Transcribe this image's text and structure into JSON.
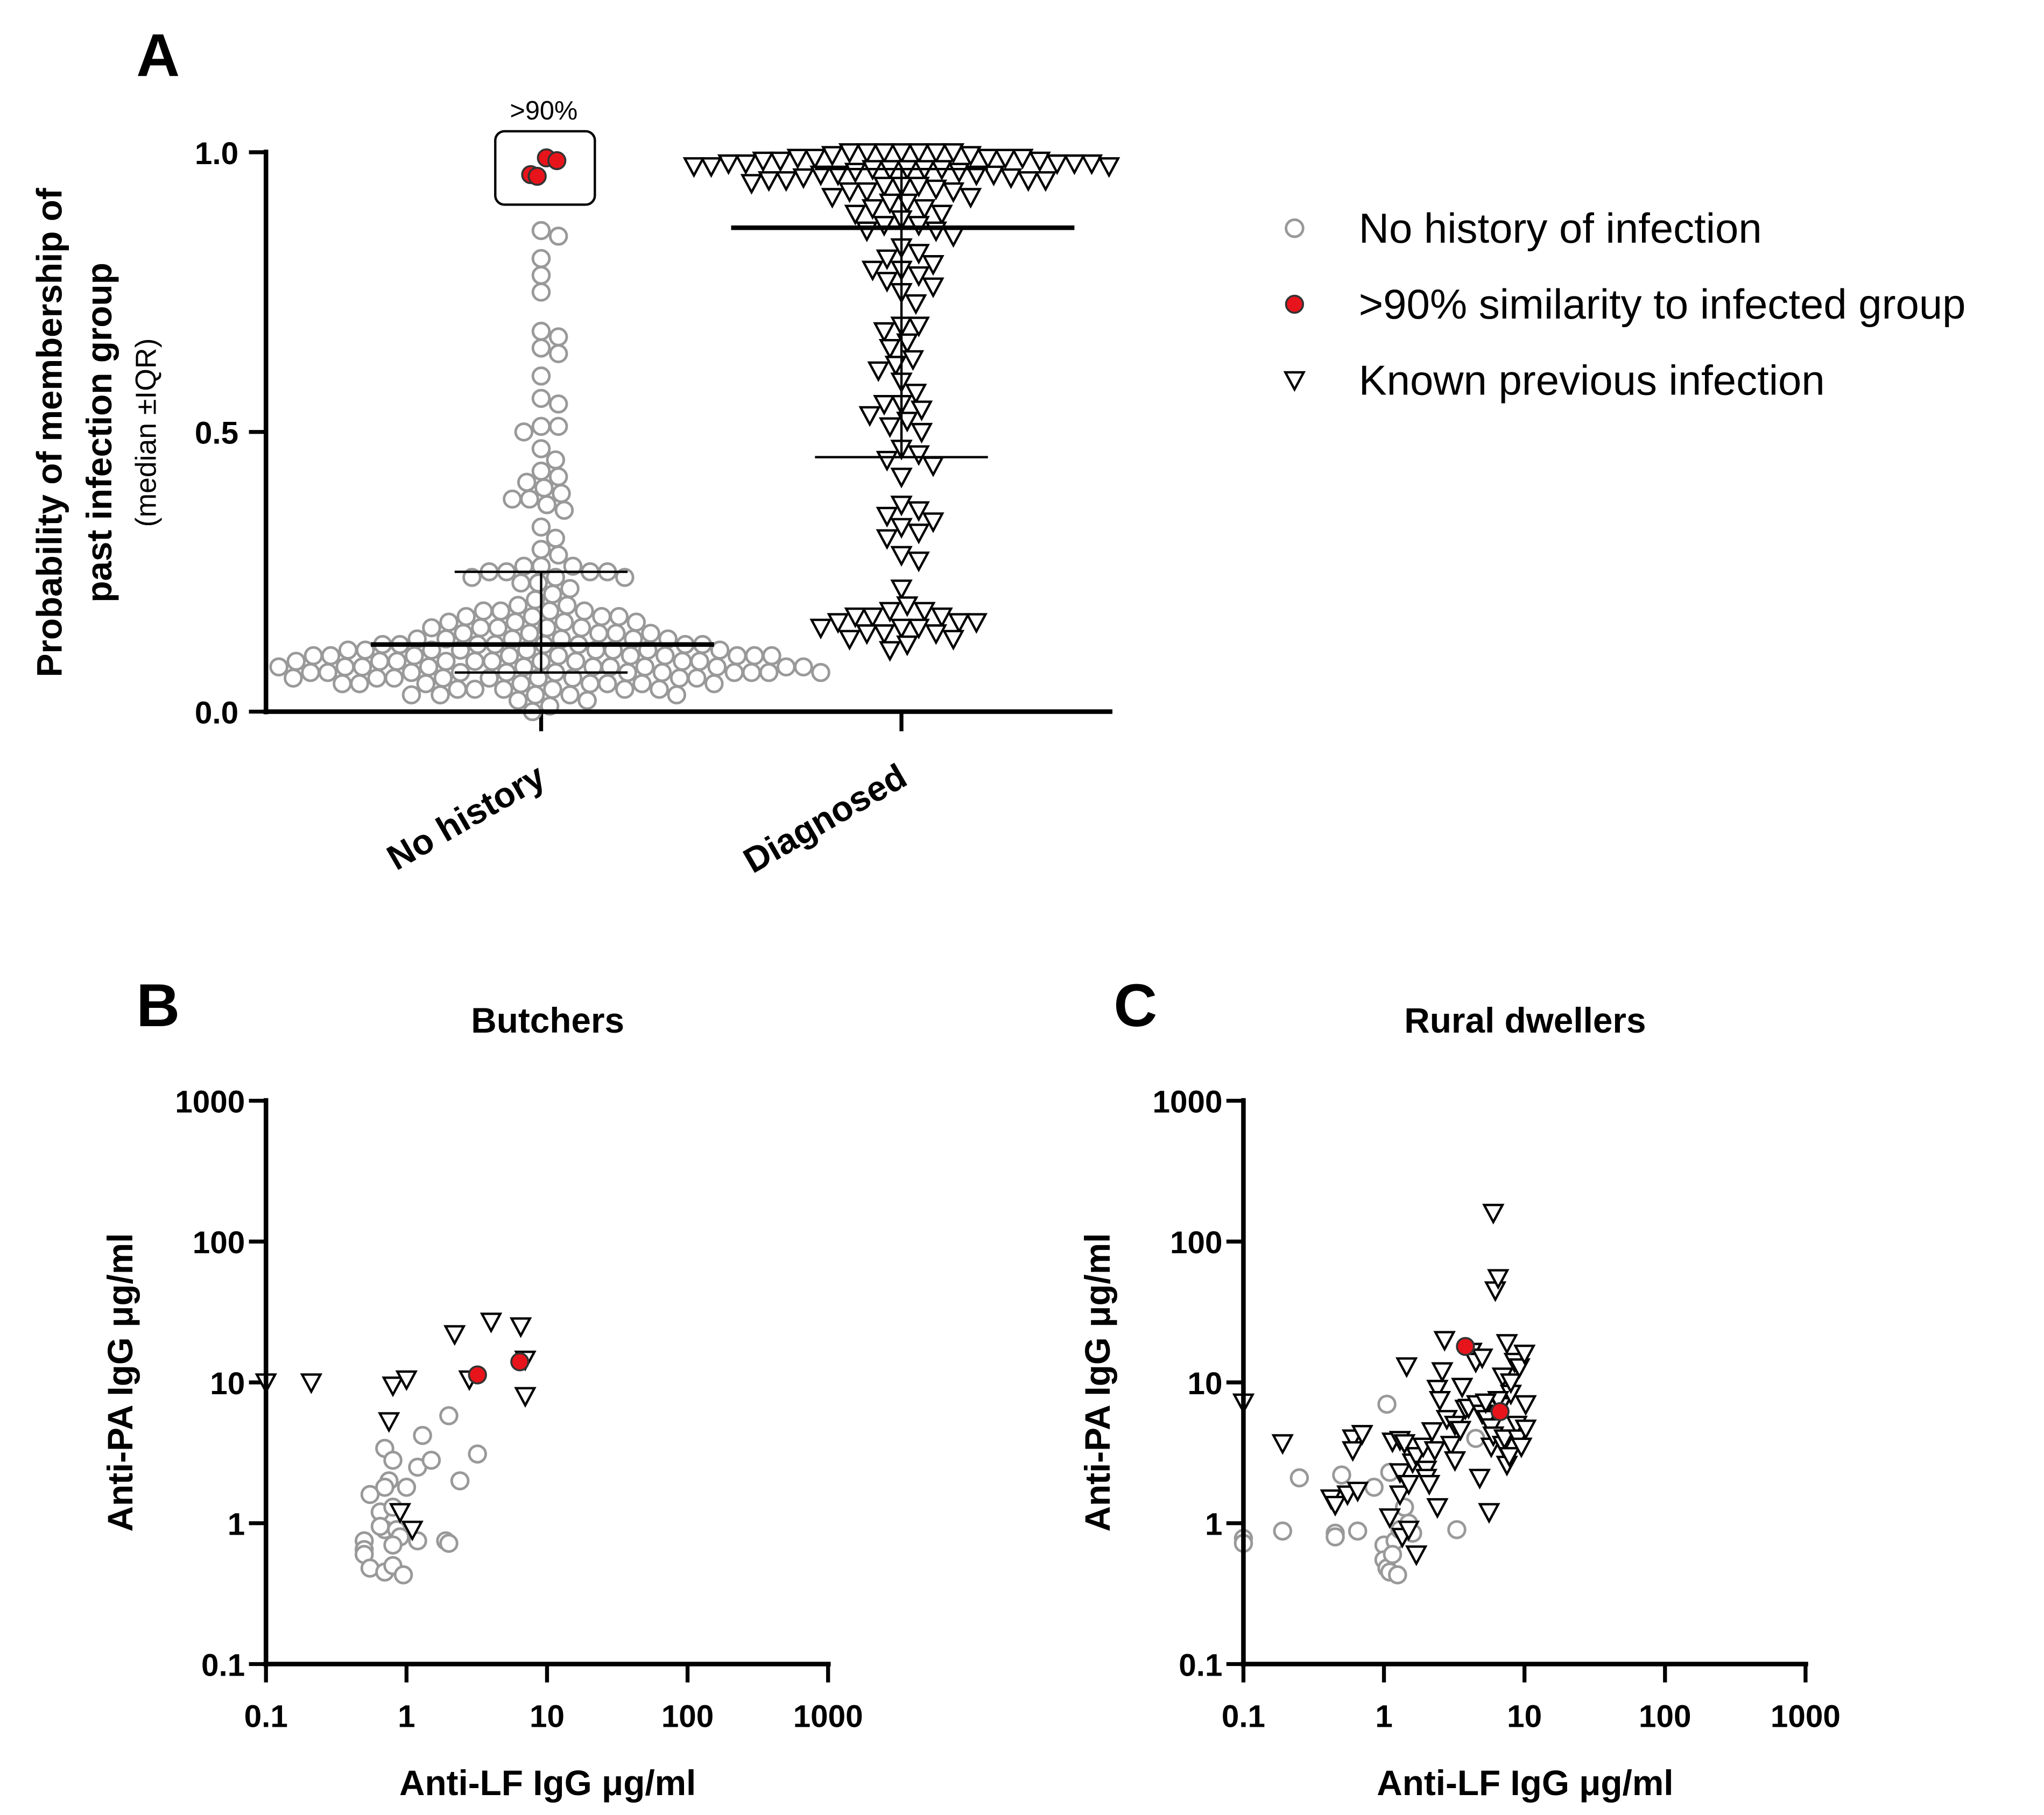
{
  "colors": {
    "no_history": "#999999",
    "similar": "#e8141b",
    "known": "#000000"
  },
  "legend": [
    {
      "label": "No history of infection",
      "marker": "open-circle"
    },
    {
      "label": ">90% similarity to infected group",
      "marker": "red-circle"
    },
    {
      "label": "Known previous infection",
      "marker": "open-triangle"
    }
  ],
  "chart_data": [
    {
      "panel": "A",
      "type": "scatter",
      "ylabel": "Probability of membership of past infection group",
      "ylabel_line1": "Probability of membership of",
      "ylabel_line2": "past infection group",
      "ylabel_sub": "(median ±IQR)",
      "ylim": [
        0,
        1
      ],
      "yticks": [
        "0.0",
        "0.5",
        "1.0"
      ],
      "categories": [
        "No history",
        "Diagnosed"
      ],
      "annotation": ">90%",
      "series": [
        {
          "name": "No history of infection",
          "category": "No history",
          "values": [
            0.86,
            0.85,
            0.81,
            0.78,
            0.75,
            0.68,
            0.67,
            0.65,
            0.64,
            0.6,
            0.56,
            0.55,
            0.51,
            0.51,
            0.5,
            0.47,
            0.45,
            0.43,
            0.42,
            0.41,
            0.4,
            0.39,
            0.38,
            0.38,
            0.37,
            0.36,
            0.33,
            0.31,
            0.29,
            0.28,
            0.26,
            0.26,
            0.26,
            0.25,
            0.25,
            0.25,
            0.25,
            0.24,
            0.24,
            0.24,
            0.23,
            0.23,
            0.22,
            0.21,
            0.2,
            0.19,
            0.19,
            0.18,
            0.18,
            0.18,
            0.18,
            0.17,
            0.17,
            0.17,
            0.17,
            0.16,
            0.16,
            0.16,
            0.16,
            0.15,
            0.15,
            0.15,
            0.15,
            0.15,
            0.14,
            0.14,
            0.14,
            0.14,
            0.14,
            0.13,
            0.13,
            0.13,
            0.13,
            0.13,
            0.13,
            0.12,
            0.12,
            0.12,
            0.12,
            0.12,
            0.12,
            0.12,
            0.12,
            0.11,
            0.11,
            0.11,
            0.11,
            0.11,
            0.11,
            0.11,
            0.11,
            0.11,
            0.1,
            0.1,
            0.1,
            0.1,
            0.1,
            0.1,
            0.1,
            0.1,
            0.1,
            0.1,
            0.09,
            0.09,
            0.09,
            0.09,
            0.09,
            0.09,
            0.09,
            0.09,
            0.09,
            0.09,
            0.08,
            0.08,
            0.08,
            0.08,
            0.08,
            0.08,
            0.08,
            0.08,
            0.08,
            0.08,
            0.08,
            0.07,
            0.07,
            0.07,
            0.07,
            0.07,
            0.07,
            0.07,
            0.07,
            0.07,
            0.07,
            0.07,
            0.07,
            0.06,
            0.06,
            0.06,
            0.06,
            0.06,
            0.06,
            0.06,
            0.06,
            0.06,
            0.05,
            0.05,
            0.05,
            0.05,
            0.05,
            0.05,
            0.05,
            0.05,
            0.04,
            0.04,
            0.04,
            0.04,
            0.04,
            0.04,
            0.03,
            0.03,
            0.03,
            0.03,
            0.03,
            0.02,
            0.02,
            0.01,
            0.0
          ]
        },
        {
          "name": ">90% similarity to infected group",
          "category": "No history",
          "values": [
            0.99,
            0.985,
            0.96,
            0.957
          ]
        },
        {
          "name": "Known previous infection",
          "category": "Diagnosed",
          "values": [
            1.0,
            1.0,
            1.0,
            1.0,
            1.0,
            1.0,
            1.0,
            0.995,
            0.995,
            0.99,
            0.99,
            0.99,
            0.99,
            0.99,
            0.985,
            0.985,
            0.985,
            0.98,
            0.98,
            0.98,
            0.98,
            0.98,
            0.975,
            0.975,
            0.975,
            0.97,
            0.97,
            0.97,
            0.97,
            0.97,
            0.965,
            0.965,
            0.96,
            0.96,
            0.96,
            0.96,
            0.955,
            0.955,
            0.95,
            0.95,
            0.95,
            0.95,
            0.945,
            0.94,
            0.94,
            0.94,
            0.935,
            0.93,
            0.93,
            0.93,
            0.92,
            0.92,
            0.91,
            0.91,
            0.9,
            0.9,
            0.89,
            0.89,
            0.88,
            0.87,
            0.87,
            0.86,
            0.86,
            0.85,
            0.83,
            0.82,
            0.81,
            0.8,
            0.79,
            0.79,
            0.78,
            0.77,
            0.76,
            0.75,
            0.73,
            0.69,
            0.69,
            0.68,
            0.66,
            0.65,
            0.63,
            0.62,
            0.61,
            0.59,
            0.57,
            0.55,
            0.55,
            0.54,
            0.53,
            0.52,
            0.51,
            0.5,
            0.47,
            0.46,
            0.45,
            0.44,
            0.42,
            0.37,
            0.36,
            0.35,
            0.34,
            0.33,
            0.32,
            0.31,
            0.28,
            0.27,
            0.22,
            0.19,
            0.18,
            0.18,
            0.17,
            0.17,
            0.17,
            0.16,
            0.16,
            0.16,
            0.15,
            0.15,
            0.15,
            0.14,
            0.14,
            0.14,
            0.13,
            0.13,
            0.12,
            0.11
          ]
        }
      ],
      "summary": [
        {
          "category": "No history",
          "median": 0.12,
          "q1": 0.07,
          "q3": 0.25
        },
        {
          "category": "Diagnosed",
          "median": 0.865,
          "q1": 0.455,
          "q3": 0.97
        }
      ]
    },
    {
      "panel": "B",
      "type": "scatter",
      "title": "Butchers",
      "xlabel": "Anti-LF IgG μg/ml",
      "ylabel": "Anti-PA IgG μg/ml",
      "xscale": "log",
      "yscale": "log",
      "xlim": [
        0.1,
        1000
      ],
      "ylim": [
        0.1,
        1000
      ],
      "xticks": [
        "0.1",
        "1",
        "10",
        "100",
        "1000"
      ],
      "yticks": [
        "0.1",
        "1",
        "10",
        "100",
        "1000"
      ],
      "series": [
        {
          "name": "No history of infection",
          "points": [
            [
              0.5,
              0.75
            ],
            [
              0.5,
              0.65
            ],
            [
              0.5,
              0.6
            ],
            [
              0.55,
              1.6
            ],
            [
              0.7,
              3.4
            ],
            [
              0.8,
              2.8
            ],
            [
              0.75,
              2
            ],
            [
              0.7,
              1.8
            ],
            [
              0.65,
              1.2
            ],
            [
              0.7,
              0.9
            ],
            [
              0.8,
              1.3
            ],
            [
              0.85,
              0.9
            ],
            [
              1.0,
              1.8
            ],
            [
              0.9,
              0.8
            ],
            [
              1.2,
              2.5
            ],
            [
              1.3,
              4.2
            ],
            [
              1.5,
              2.8
            ],
            [
              2,
              5.8
            ],
            [
              2.4,
              2
            ],
            [
              3.2,
              3.1
            ],
            [
              1.2,
              0.75
            ],
            [
              0.8,
              0.7
            ],
            [
              0.55,
              0.48
            ],
            [
              0.7,
              0.45
            ],
            [
              0.8,
              0.5
            ],
            [
              0.95,
              0.43
            ],
            [
              1.9,
              0.75
            ],
            [
              2.0,
              0.72
            ],
            [
              0.65,
              0.95
            ]
          ]
        },
        {
          "name": ">90% similarity to infected group",
          "points": [
            [
              3.2,
              11.3
            ],
            [
              6.4,
              14
            ]
          ]
        },
        {
          "name": "Known previous infection",
          "points": [
            [
              0.1,
              10
            ],
            [
              0.21,
              10
            ],
            [
              0.8,
              9.5
            ],
            [
              1.0,
              10.5
            ],
            [
              0.75,
              5.3
            ],
            [
              2.2,
              22
            ],
            [
              4,
              27
            ],
            [
              6.5,
              25
            ],
            [
              7,
              14.5
            ],
            [
              7,
              8
            ],
            [
              2.8,
              10.5
            ],
            [
              0.9,
              1.2
            ],
            [
              1.1,
              0.9
            ]
          ]
        }
      ]
    },
    {
      "panel": "C",
      "type": "scatter",
      "title": "Rural dwellers",
      "xlabel": "Anti-LF IgG μg/ml",
      "ylabel": "Anti-PA IgG μg/ml",
      "xscale": "log",
      "yscale": "log",
      "xlim": [
        0.1,
        1000
      ],
      "ylim": [
        0.1,
        1000
      ],
      "xticks": [
        "0.1",
        "1",
        "10",
        "100",
        "1000"
      ],
      "yticks": [
        "0.1",
        "1",
        "10",
        "100",
        "1000"
      ],
      "series": [
        {
          "name": "No history of infection",
          "points": [
            [
              0.1,
              0.78
            ],
            [
              0.1,
              0.72
            ],
            [
              0.19,
              0.88
            ],
            [
              0.25,
              2.1
            ],
            [
              0.45,
              0.85
            ],
            [
              0.45,
              0.8
            ],
            [
              0.5,
              2.2
            ],
            [
              0.65,
              0.88
            ],
            [
              0.85,
              1.8
            ],
            [
              1.05,
              7
            ],
            [
              1.1,
              2.3
            ],
            [
              1.0,
              0.7
            ],
            [
              1.0,
              0.55
            ],
            [
              1.05,
              0.48
            ],
            [
              1.1,
              0.45
            ],
            [
              1.2,
              0.75
            ],
            [
              1.25,
              0.43
            ],
            [
              1.4,
              1.3
            ],
            [
              1.5,
              1.0
            ],
            [
              1.3,
              0.9
            ],
            [
              1.15,
              0.6
            ],
            [
              1.6,
              0.85
            ],
            [
              3.3,
              0.9
            ],
            [
              4.5,
              4
            ]
          ]
        },
        {
          "name": ">90% similarity to infected group",
          "points": [
            [
              3.8,
              18
            ],
            [
              6.7,
              6.2
            ]
          ]
        },
        {
          "name": "Known previous infection",
          "points": [
            [
              0.1,
              7.2
            ],
            [
              0.19,
              3.7
            ],
            [
              0.42,
              1.5
            ],
            [
              0.45,
              1.35
            ],
            [
              0.55,
              1.6
            ],
            [
              0.6,
              4
            ],
            [
              0.65,
              1.7
            ],
            [
              0.7,
              4.3
            ],
            [
              0.6,
              3.3
            ],
            [
              1.1,
              1.1
            ],
            [
              1.15,
              3.8
            ],
            [
              1.3,
              3.9
            ],
            [
              1.4,
              3.7
            ],
            [
              1.3,
              2.3
            ],
            [
              1.3,
              1.6
            ],
            [
              1.35,
              0.8
            ],
            [
              1.5,
              1.9
            ],
            [
              1.6,
              2.7
            ],
            [
              1.7,
              0.6
            ],
            [
              1.5,
              0.9
            ],
            [
              1.45,
              13
            ],
            [
              1.7,
              3
            ],
            [
              1.9,
              3.5
            ],
            [
              2,
              2.4
            ],
            [
              2,
              2.1
            ],
            [
              2.1,
              1.9
            ],
            [
              2.2,
              4.5
            ],
            [
              2.3,
              3.3
            ],
            [
              2.4,
              9
            ],
            [
              2.5,
              7.5
            ],
            [
              2.4,
              1.3
            ],
            [
              2.6,
              12
            ],
            [
              2.7,
              20
            ],
            [
              2.8,
              5.5
            ],
            [
              3,
              3.6
            ],
            [
              3.2,
              2.8
            ],
            [
              3.2,
              5
            ],
            [
              3.5,
              4.6
            ],
            [
              3.6,
              9.3
            ],
            [
              3.8,
              6.5
            ],
            [
              4,
              6.6
            ],
            [
              4.2,
              16.5
            ],
            [
              4.5,
              14
            ],
            [
              4.6,
              7
            ],
            [
              4.8,
              2.1
            ],
            [
              5,
              6
            ],
            [
              5,
              15
            ],
            [
              5.4,
              5.5
            ],
            [
              5.6,
              1.2
            ],
            [
              5.8,
              3.5
            ],
            [
              5.8,
              4.8
            ],
            [
              6,
              4.2
            ],
            [
              6,
              160
            ],
            [
              6.2,
              45
            ],
            [
              6.5,
              55
            ],
            [
              6.8,
              6.8
            ],
            [
              7,
              11
            ],
            [
              7,
              3.6
            ],
            [
              7.2,
              4
            ],
            [
              7.5,
              19
            ],
            [
              7.5,
              2.6
            ],
            [
              7.8,
              3
            ],
            [
              8,
              8.3
            ],
            [
              8,
              10
            ],
            [
              8.5,
              14
            ],
            [
              8.8,
              5
            ],
            [
              9,
              4
            ],
            [
              9.2,
              12.8
            ],
            [
              9.5,
              3.5
            ],
            [
              10,
              16
            ],
            [
              10.2,
              4.7
            ],
            [
              10.2,
              7
            ],
            [
              6.5,
              7.5
            ],
            [
              5.3,
              7.2
            ]
          ]
        }
      ]
    }
  ]
}
